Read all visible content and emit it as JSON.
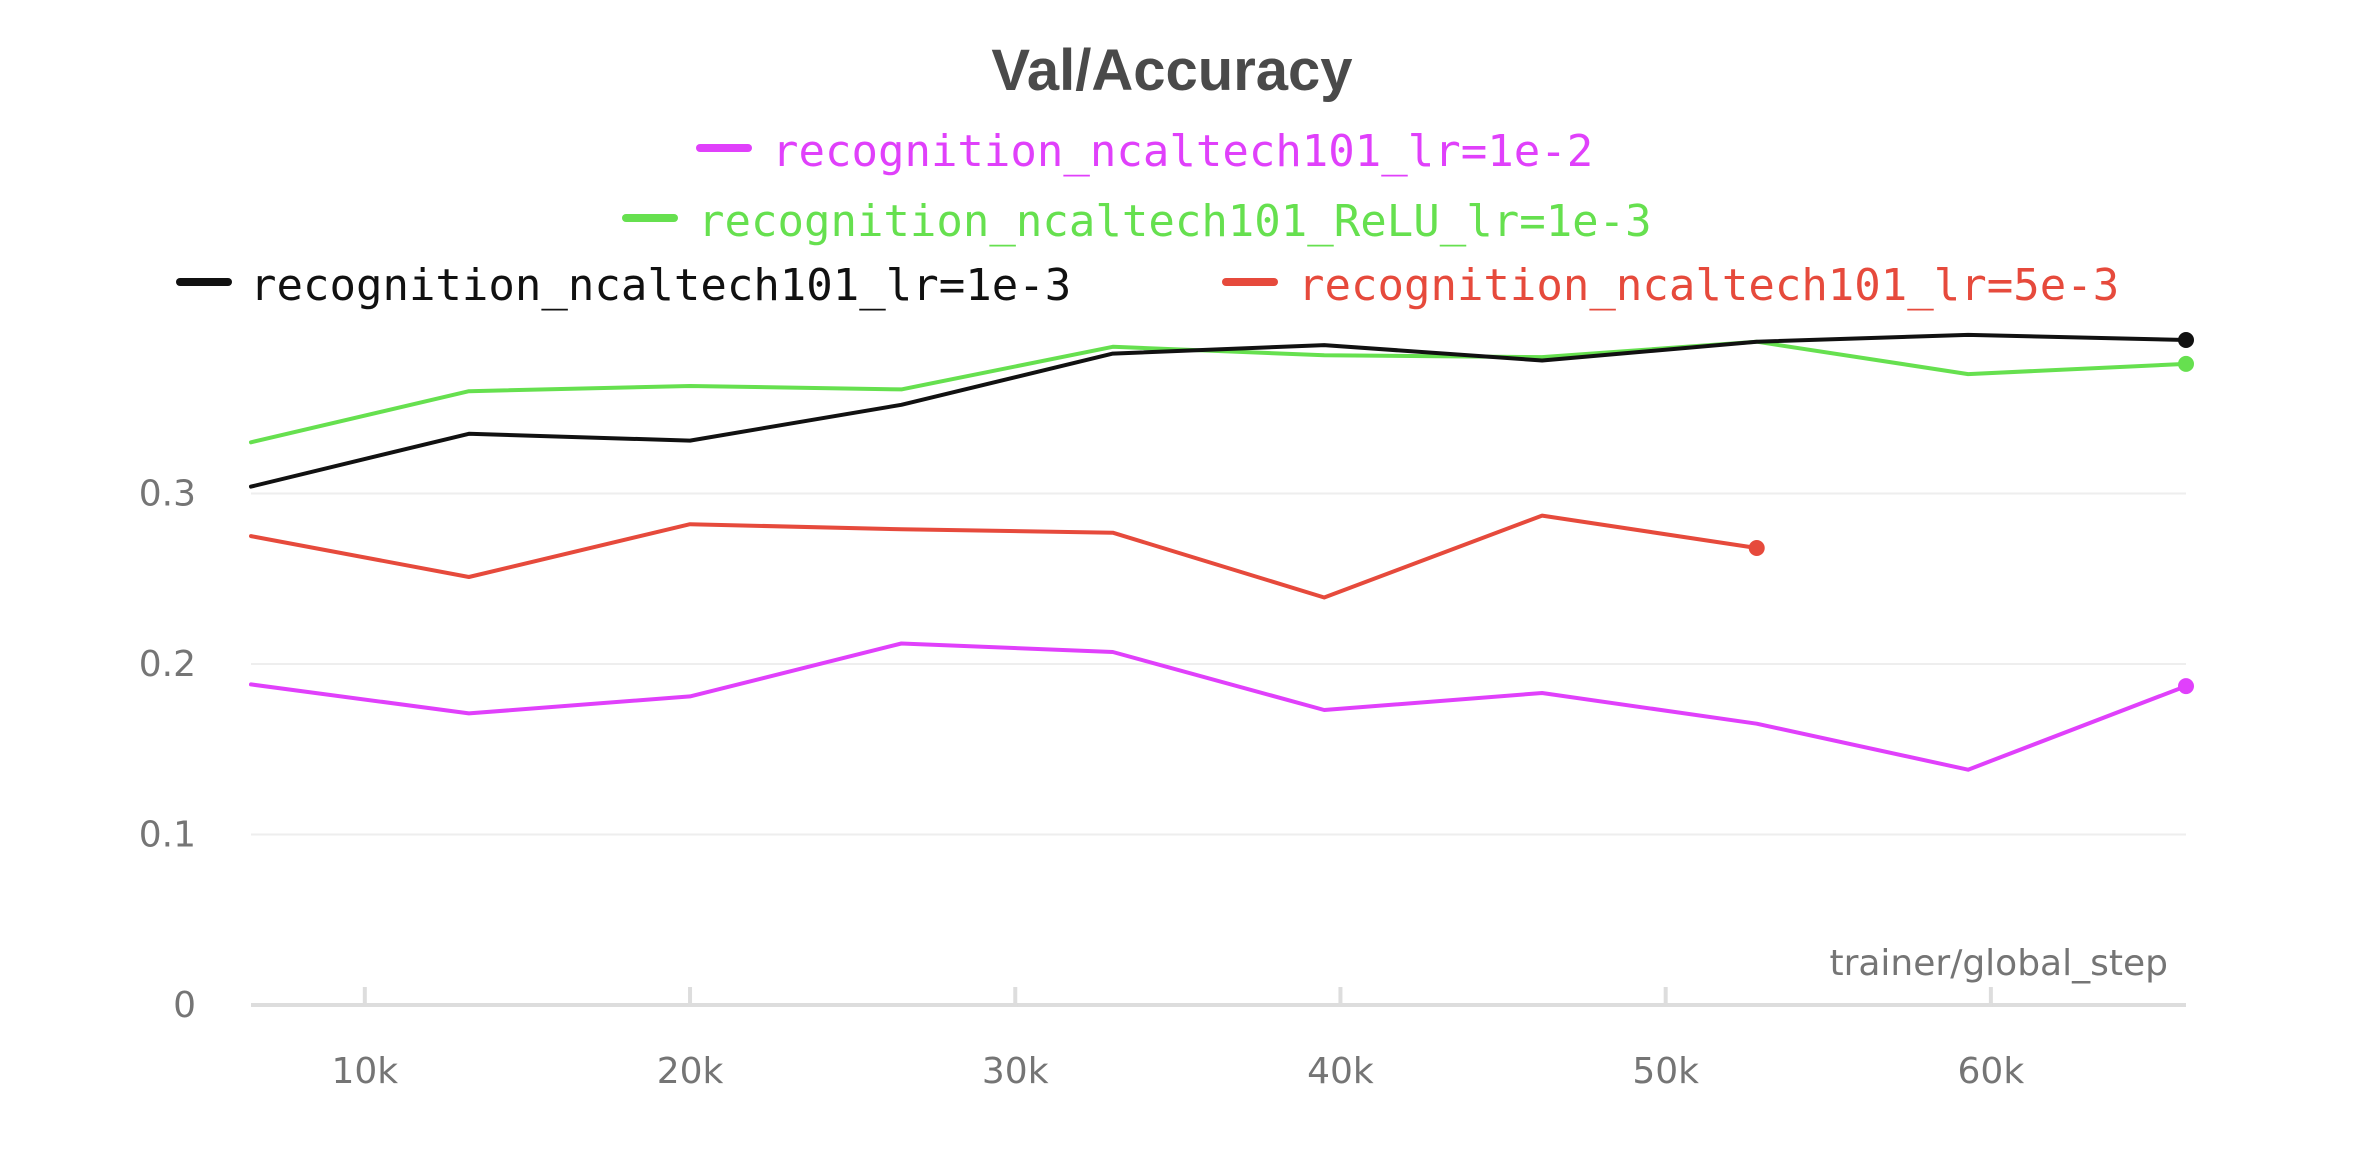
{
  "chart_data": {
    "type": "line",
    "title": "Val/Accuracy",
    "xlabel": "trainer/global_step",
    "ylabel": "",
    "xlim": [
      6500,
      66000
    ],
    "ylim": [
      0,
      0.39
    ],
    "x_ticks": [
      10000,
      20000,
      30000,
      40000,
      50000,
      60000
    ],
    "x_tick_labels": [
      "10k",
      "20k",
      "30k",
      "40k",
      "50k",
      "60k"
    ],
    "y_ticks": [
      0,
      0.1,
      0.2,
      0.3
    ],
    "y_tick_labels": [
      "0",
      "0.1",
      "0.2",
      "0.3"
    ],
    "grid": true,
    "legend_position": "top",
    "series": [
      {
        "name": "recognition_ncaltech101_lr=1e-2",
        "color": "#e040fb",
        "x": [
          6500,
          13200,
          20000,
          26500,
          33000,
          39500,
          46200,
          52800,
          59300,
          66000
        ],
        "y": [
          0.188,
          0.171,
          0.181,
          0.212,
          0.207,
          0.173,
          0.183,
          0.165,
          0.138,
          0.187
        ]
      },
      {
        "name": "recognition_ncaltech101_ReLU_lr=1e-3",
        "color": "#66e04f",
        "x": [
          6500,
          13200,
          20000,
          26500,
          33000,
          39500,
          46200,
          52800,
          59300,
          66000
        ],
        "y": [
          0.33,
          0.36,
          0.363,
          0.361,
          0.386,
          0.381,
          0.38,
          0.389,
          0.37,
          0.376
        ]
      },
      {
        "name": "recognition_ncaltech101_lr=1e-3",
        "color": "#111111",
        "x": [
          6500,
          13200,
          20000,
          26500,
          33000,
          39500,
          46200,
          52800,
          59300,
          66000
        ],
        "y": [
          0.304,
          0.335,
          0.331,
          0.352,
          0.382,
          0.387,
          0.378,
          0.389,
          0.393,
          0.39
        ]
      },
      {
        "name": "recognition_ncaltech101_lr=5e-3",
        "color": "#e64a3c",
        "x": [
          6500,
          13200,
          20000,
          26500,
          33000,
          39500,
          46200,
          52800
        ],
        "y": [
          0.275,
          0.251,
          0.282,
          0.279,
          0.277,
          0.239,
          0.287,
          0.268
        ]
      }
    ]
  }
}
